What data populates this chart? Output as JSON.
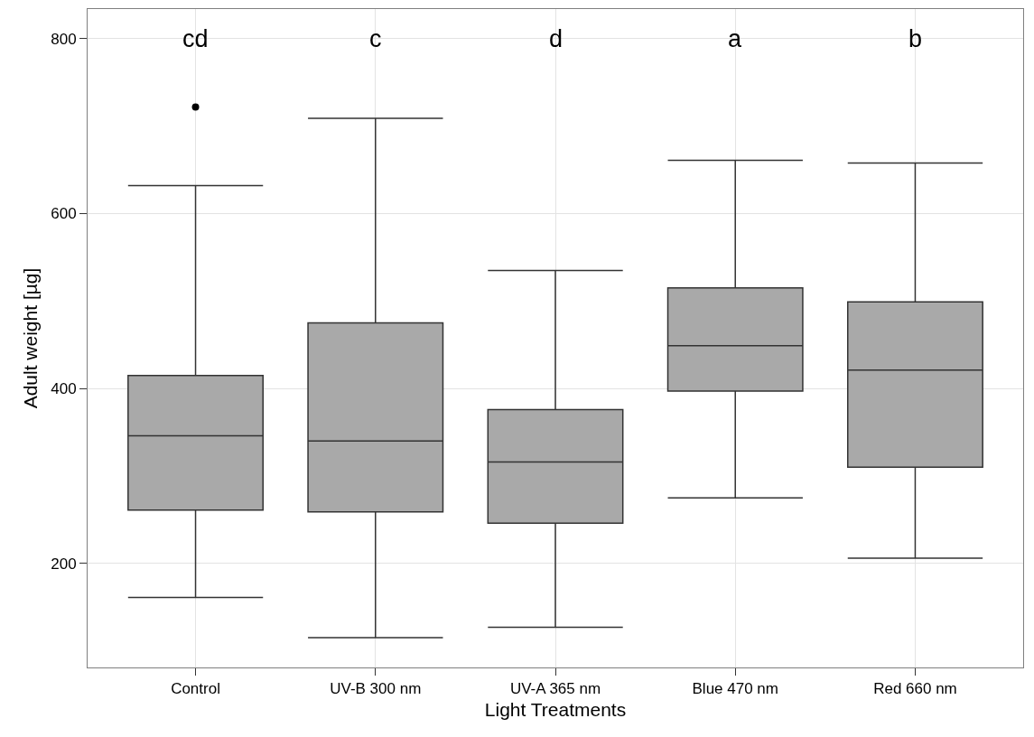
{
  "chart_data": {
    "type": "box",
    "xlabel": "Light Treatments",
    "ylabel": "Adult weight [µg]",
    "categories": [
      "Control",
      "UV-B 300 nm",
      "UV-A 365 nm",
      "Blue 470 nm",
      "Red 660 nm"
    ],
    "color": "#a9a9a9",
    "boxes": [
      {
        "low": 161,
        "q1": 261,
        "median": 346,
        "q3": 415,
        "high": 632,
        "outliers": [
          722
        ]
      },
      {
        "low": 115,
        "q1": 259,
        "median": 340,
        "q3": 475,
        "high": 709
      },
      {
        "low": 127,
        "q1": 246,
        "median": 316,
        "q3": 376,
        "high": 535
      },
      {
        "low": 275,
        "q1": 397,
        "median": 449,
        "q3": 515,
        "high": 661
      },
      {
        "low": 206,
        "q1": 310,
        "median": 421,
        "q3": 499,
        "high": 658
      }
    ],
    "ylim": [
      81,
      834
    ],
    "yticks": [
      200,
      400,
      600,
      800
    ],
    "grid": true,
    "annotations": [
      "cd",
      "c",
      "d",
      "a",
      "b"
    ]
  }
}
